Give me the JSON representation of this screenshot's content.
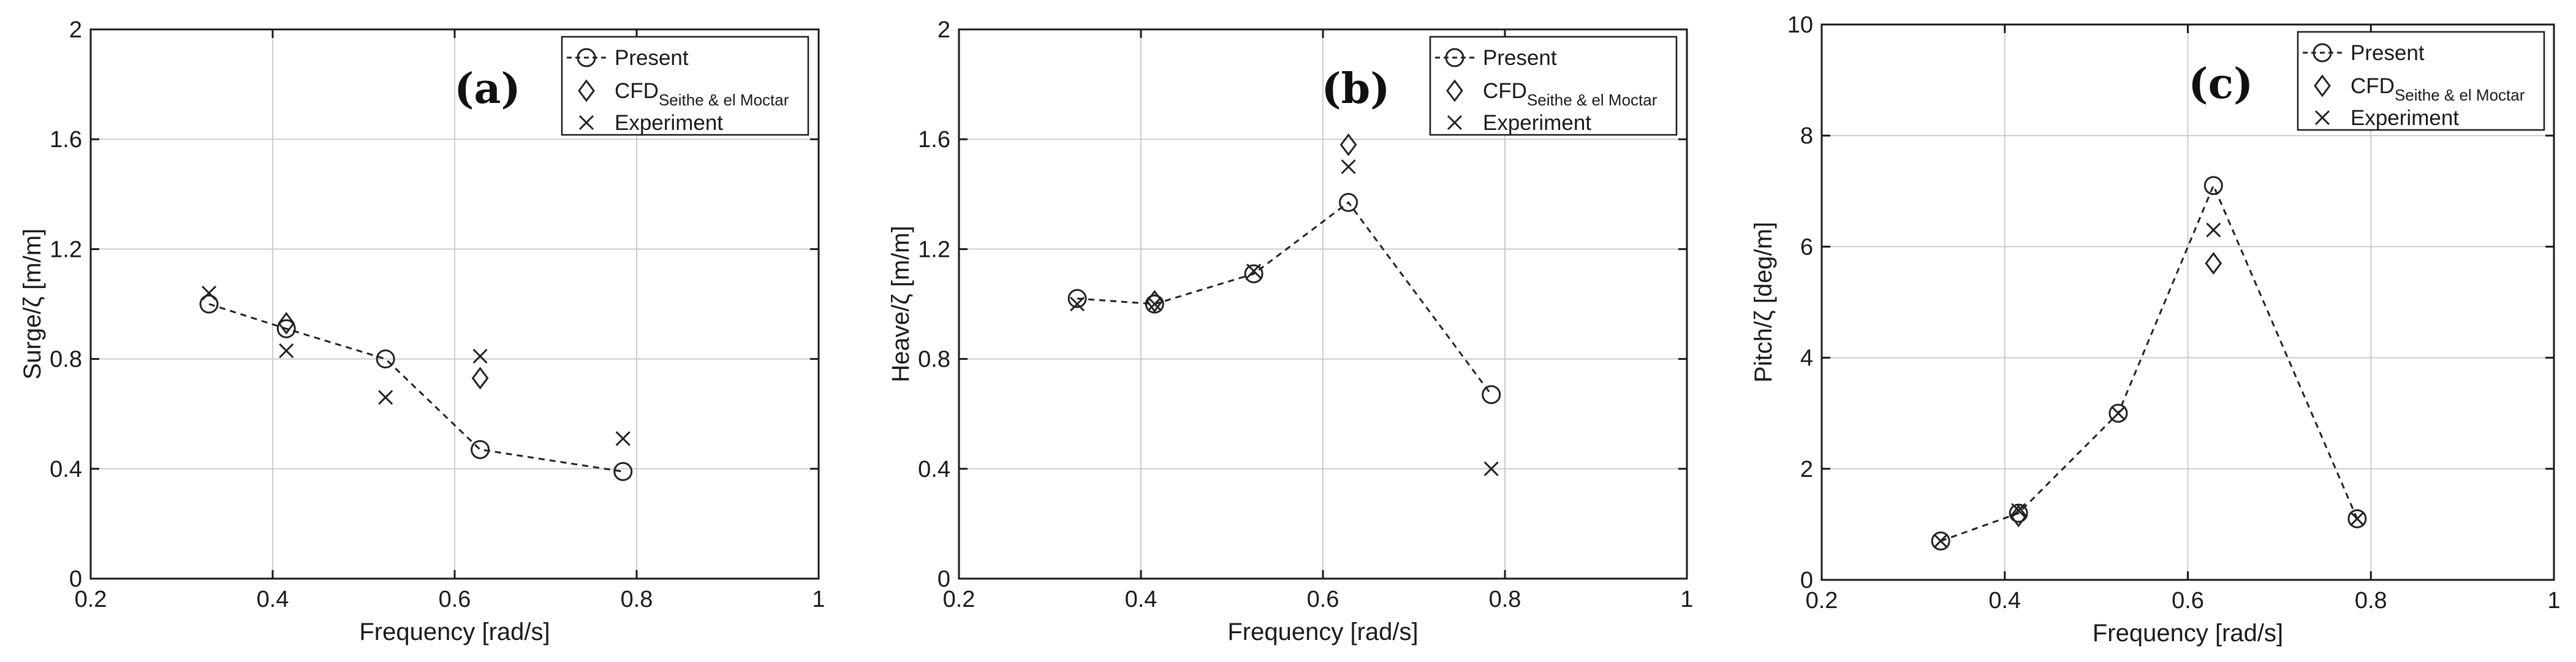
{
  "colors": {
    "axis": "#1a1a1a",
    "grid": "#cccccc",
    "line": "#222222",
    "background": "#ffffff"
  },
  "chart_data": [
    {
      "type": "line",
      "panel": "(a)",
      "xlabel": "Frequency [rad/s]",
      "ylabel": "Surge/ζ [m/m]",
      "xlim": [
        0.2,
        1
      ],
      "ylim": [
        0,
        2
      ],
      "xticks": [
        0.2,
        0.4,
        0.6,
        0.8,
        1
      ],
      "xtick_labels": [
        "0.2",
        "0.4",
        "0.6",
        "0.8",
        "1"
      ],
      "yticks": [
        0,
        0.4,
        0.8,
        1.2,
        1.6,
        2
      ],
      "ytick_labels": [
        "0",
        "0.4",
        "0.8",
        "1.2",
        "1.6",
        "2"
      ],
      "grid": true,
      "legend_position": "top-right",
      "legend": [
        {
          "label": "Present",
          "sub": "",
          "marker": "circle-line"
        },
        {
          "label": "CFD",
          "sub": "Seithe & el Moctar",
          "marker": "diamond"
        },
        {
          "label": "Experiment",
          "sub": "",
          "marker": "cross"
        }
      ],
      "series": [
        {
          "name": "Present",
          "marker": "circle",
          "line": "dashed",
          "x": [
            0.33,
            0.415,
            0.524,
            0.628,
            0.785
          ],
          "y": [
            1.0,
            0.91,
            0.8,
            0.47,
            0.39
          ]
        },
        {
          "name": "CFD Seithe & el Moctar",
          "marker": "diamond",
          "line": "none",
          "x": [
            0.415,
            0.628
          ],
          "y": [
            0.93,
            0.73
          ]
        },
        {
          "name": "Experiment",
          "marker": "cross",
          "line": "none",
          "x": [
            0.33,
            0.415,
            0.524,
            0.628,
            0.785
          ],
          "y": [
            1.04,
            0.83,
            0.66,
            0.81,
            0.51
          ]
        }
      ]
    },
    {
      "type": "line",
      "panel": "(b)",
      "xlabel": "Frequency [rad/s]",
      "ylabel": "Heave/ζ [m/m]",
      "xlim": [
        0.2,
        1
      ],
      "ylim": [
        0,
        2
      ],
      "xticks": [
        0.2,
        0.4,
        0.6,
        0.8,
        1
      ],
      "xtick_labels": [
        "0.2",
        "0.4",
        "0.6",
        "0.8",
        "1"
      ],
      "yticks": [
        0,
        0.4,
        0.8,
        1.2,
        1.6,
        2
      ],
      "ytick_labels": [
        "0",
        "0.4",
        "0.8",
        "1.2",
        "1.6",
        "2"
      ],
      "grid": true,
      "legend_position": "top-right",
      "legend": [
        {
          "label": "Present",
          "sub": "",
          "marker": "circle-line"
        },
        {
          "label": "CFD",
          "sub": "Seithe & el Moctar",
          "marker": "diamond"
        },
        {
          "label": "Experiment",
          "sub": "",
          "marker": "cross"
        }
      ],
      "series": [
        {
          "name": "Present",
          "marker": "circle",
          "line": "dashed",
          "x": [
            0.33,
            0.415,
            0.524,
            0.628,
            0.785
          ],
          "y": [
            1.02,
            1.0,
            1.11,
            1.37,
            0.67
          ]
        },
        {
          "name": "CFD Seithe & el Moctar",
          "marker": "diamond",
          "line": "none",
          "x": [
            0.415,
            0.628
          ],
          "y": [
            1.01,
            1.58
          ]
        },
        {
          "name": "Experiment",
          "marker": "cross",
          "line": "none",
          "x": [
            0.33,
            0.415,
            0.524,
            0.628,
            0.785
          ],
          "y": [
            1.0,
            1.0,
            1.12,
            1.5,
            0.4
          ]
        }
      ]
    },
    {
      "type": "line",
      "panel": "(c)",
      "xlabel": "Frequency [rad/s]",
      "ylabel": "Pitch/ζ [deg/m]",
      "xlim": [
        0.2,
        1
      ],
      "ylim": [
        0,
        10
      ],
      "xticks": [
        0.2,
        0.4,
        0.6,
        0.8,
        1
      ],
      "xtick_labels": [
        "0.2",
        "0.4",
        "0.6",
        "0.8",
        "1"
      ],
      "yticks": [
        0,
        2,
        4,
        6,
        8,
        10
      ],
      "ytick_labels": [
        "0",
        "2",
        "4",
        "6",
        "8",
        "10"
      ],
      "grid": true,
      "legend_position": "top-right",
      "legend": [
        {
          "label": "Present",
          "sub": "",
          "marker": "circle-line"
        },
        {
          "label": "CFD",
          "sub": "Seithe & el Moctar",
          "marker": "diamond"
        },
        {
          "label": "Experiment",
          "sub": "",
          "marker": "cross"
        }
      ],
      "series": [
        {
          "name": "Present",
          "marker": "circle",
          "line": "dashed",
          "x": [
            0.33,
            0.415,
            0.524,
            0.628,
            0.785
          ],
          "y": [
            0.7,
            1.2,
            3.0,
            7.1,
            1.1
          ]
        },
        {
          "name": "CFD Seithe & el Moctar",
          "marker": "diamond",
          "line": "none",
          "x": [
            0.415,
            0.628
          ],
          "y": [
            1.15,
            5.7
          ]
        },
        {
          "name": "Experiment",
          "marker": "cross",
          "line": "none",
          "x": [
            0.33,
            0.415,
            0.524,
            0.628,
            0.785
          ],
          "y": [
            0.7,
            1.25,
            3.0,
            6.3,
            1.1
          ]
        }
      ]
    }
  ]
}
